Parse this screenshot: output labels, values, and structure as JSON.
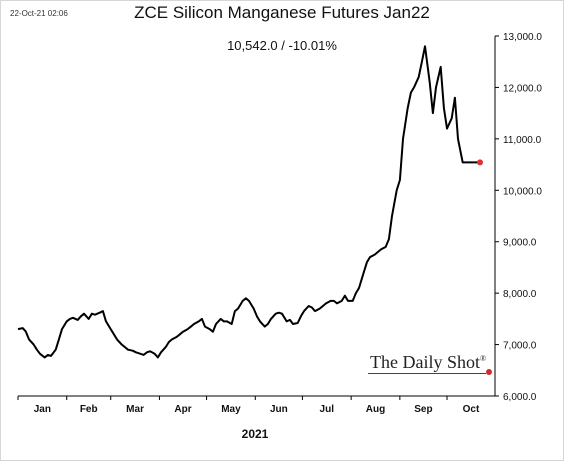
{
  "header": {
    "timestamp": "22-Oct-21 02:06",
    "title": "ZCE Silicon Manganese Futures Jan22",
    "last_value": "10,542.0  /  -10.01%"
  },
  "watermark": {
    "text": "The Daily Shot",
    "registered": "®"
  },
  "colors": {
    "line": "#000000",
    "last_point": "#e03030",
    "axis": "#000000"
  },
  "chart_data": {
    "type": "line",
    "title": "ZCE Silicon Manganese Futures Jan22",
    "xlabel": "2021",
    "ylabel": "",
    "ylim": [
      6000,
      13000
    ],
    "y_ticks": [
      6000,
      7000,
      8000,
      9000,
      10000,
      11000,
      12000,
      13000
    ],
    "y_tick_labels": [
      "6,000.0",
      "7,000.0",
      "8,000.0",
      "9,000.0",
      "10,000.0",
      "11,000.0",
      "12,000.0",
      "13,000.0"
    ],
    "x_range": [
      "2021-01-01",
      "2021-10-22"
    ],
    "x_ticks": [
      "2021-01-01",
      "2021-02-01",
      "2021-03-01",
      "2021-04-01",
      "2021-05-01",
      "2021-06-01",
      "2021-07-01",
      "2021-08-01",
      "2021-09-01",
      "2021-10-01"
    ],
    "x_tick_labels": [
      "Jan",
      "Feb",
      "Mar",
      "Apr",
      "May",
      "Jun",
      "Jul",
      "Aug",
      "Sep",
      "Oct"
    ],
    "grid": false,
    "series": [
      {
        "x": [
          "2021-01-01",
          "2021-01-04",
          "2021-01-06",
          "2021-01-08",
          "2021-01-11",
          "2021-01-13",
          "2021-01-15",
          "2021-01-18",
          "2021-01-20",
          "2021-01-22",
          "2021-01-25",
          "2021-01-27",
          "2021-01-29",
          "2021-02-01",
          "2021-02-03",
          "2021-02-05",
          "2021-02-08",
          "2021-02-10",
          "2021-02-12",
          "2021-02-15",
          "2021-02-17",
          "2021-02-19",
          "2021-02-22",
          "2021-02-24",
          "2021-02-26",
          "2021-03-01",
          "2021-03-03",
          "2021-03-05",
          "2021-03-08",
          "2021-03-10",
          "2021-03-12",
          "2021-03-15",
          "2021-03-17",
          "2021-03-19",
          "2021-03-22",
          "2021-03-24",
          "2021-03-26",
          "2021-03-29",
          "2021-03-31",
          "2021-04-02",
          "2021-04-05",
          "2021-04-07",
          "2021-04-09",
          "2021-04-12",
          "2021-04-14",
          "2021-04-16",
          "2021-04-19",
          "2021-04-21",
          "2021-04-23",
          "2021-04-26",
          "2021-04-28",
          "2021-04-30",
          "2021-05-03",
          "2021-05-05",
          "2021-05-07",
          "2021-05-10",
          "2021-05-12",
          "2021-05-14",
          "2021-05-17",
          "2021-05-19",
          "2021-05-21",
          "2021-05-24",
          "2021-05-26",
          "2021-05-28",
          "2021-05-31",
          "2021-06-02",
          "2021-06-04",
          "2021-06-07",
          "2021-06-09",
          "2021-06-11",
          "2021-06-14",
          "2021-06-16",
          "2021-06-18",
          "2021-06-21",
          "2021-06-23",
          "2021-06-25",
          "2021-06-28",
          "2021-06-30",
          "2021-07-02",
          "2021-07-05",
          "2021-07-07",
          "2021-07-09",
          "2021-07-12",
          "2021-07-14",
          "2021-07-16",
          "2021-07-19",
          "2021-07-21",
          "2021-07-23",
          "2021-07-26",
          "2021-07-28",
          "2021-07-30",
          "2021-08-02",
          "2021-08-04",
          "2021-08-06",
          "2021-08-09",
          "2021-08-11",
          "2021-08-13",
          "2021-08-16",
          "2021-08-18",
          "2021-08-20",
          "2021-08-23",
          "2021-08-25",
          "2021-08-27",
          "2021-08-30",
          "2021-09-01",
          "2021-09-03",
          "2021-09-06",
          "2021-09-08",
          "2021-09-10",
          "2021-09-13",
          "2021-09-15",
          "2021-09-17",
          "2021-09-20",
          "2021-09-22",
          "2021-09-24",
          "2021-09-27",
          "2021-09-29",
          "2021-10-01",
          "2021-10-04",
          "2021-10-06",
          "2021-10-08",
          "2021-10-11",
          "2021-10-13",
          "2021-10-15",
          "2021-10-18",
          "2021-10-20",
          "2021-10-22"
        ],
        "y": [
          7300,
          7320,
          7250,
          7100,
          7000,
          6900,
          6820,
          6750,
          6800,
          6780,
          6900,
          7100,
          7300,
          7450,
          7500,
          7520,
          7480,
          7550,
          7600,
          7500,
          7600,
          7580,
          7620,
          7650,
          7450,
          7300,
          7200,
          7100,
          7000,
          6950,
          6900,
          6880,
          6850,
          6830,
          6800,
          6850,
          6870,
          6820,
          6750,
          6850,
          6950,
          7050,
          7100,
          7150,
          7200,
          7250,
          7300,
          7350,
          7400,
          7450,
          7500,
          7350,
          7300,
          7250,
          7400,
          7500,
          7450,
          7450,
          7400,
          7650,
          7700,
          7850,
          7900,
          7850,
          7700,
          7550,
          7450,
          7350,
          7400,
          7500,
          7600,
          7620,
          7600,
          7450,
          7480,
          7400,
          7420,
          7550,
          7650,
          7750,
          7720,
          7650,
          7700,
          7750,
          7800,
          7850,
          7850,
          7800,
          7850,
          7950,
          7850,
          7850,
          8000,
          8100,
          8400,
          8600,
          8700,
          8750,
          8800,
          8850,
          8900,
          9050,
          9500,
          10000,
          10200,
          11000,
          11600,
          11900,
          12000,
          12200,
          12500,
          12800,
          12100,
          11500,
          12000,
          12400,
          11600,
          11200,
          11400,
          11800,
          11000,
          10542,
          10542,
          10542,
          10542,
          10542,
          10542
        ]
      }
    ],
    "last_point": {
      "x": "2021-10-22",
      "y": 10542
    }
  }
}
